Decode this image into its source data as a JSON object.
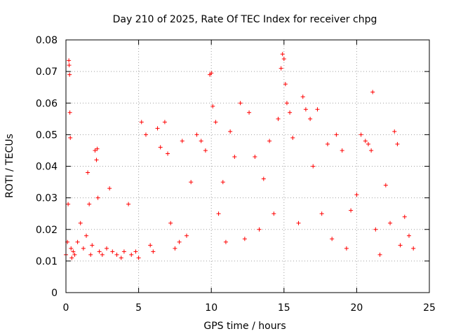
{
  "chart_data": {
    "type": "scatter",
    "title": "Day 210 of 2025, Rate Of TEC Index for receiver chpg",
    "xlabel": "GPS time / hours",
    "ylabel": "ROTI / TECUs",
    "xlim": [
      0,
      25
    ],
    "ylim": [
      0,
      0.08
    ],
    "x_ticks": [
      "0",
      "5",
      "10",
      "15",
      "20",
      "25"
    ],
    "x_tick_values": [
      0,
      5,
      10,
      15,
      20,
      25
    ],
    "y_ticks": [
      "0",
      "0.01",
      "0.02",
      "0.03",
      "0.04",
      "0.05",
      "0.06",
      "0.07",
      "0.08"
    ],
    "y_tick_values": [
      0,
      0.01,
      0.02,
      0.03,
      0.04,
      0.05,
      0.06,
      0.07,
      0.08
    ],
    "grid": true,
    "legend": "none",
    "marker": "+",
    "marker_color": "#ff0000",
    "series": [
      {
        "x": [
          0.0,
          0.1,
          0.15,
          0.2,
          0.22,
          0.25,
          0.27,
          0.3,
          0.35,
          0.4,
          0.5,
          0.6,
          0.8,
          1.0,
          1.2,
          1.4,
          1.5,
          1.6,
          1.7,
          1.8,
          2.0,
          2.1,
          2.15,
          2.2,
          2.3,
          2.5,
          2.8,
          3.0,
          3.2,
          3.5,
          3.8,
          4.0,
          4.3,
          4.5,
          4.8,
          5.0,
          5.2,
          5.5,
          5.8,
          6.0,
          6.3,
          6.5,
          6.8,
          7.0,
          7.2,
          7.5,
          7.8,
          8.0,
          8.3,
          8.6,
          9.0,
          9.3,
          9.6,
          9.9,
          10.0,
          10.1,
          10.3,
          10.5,
          10.8,
          11.0,
          11.3,
          11.6,
          12.0,
          12.3,
          12.6,
          13.0,
          13.3,
          13.6,
          14.0,
          14.3,
          14.6,
          14.8,
          14.9,
          15.0,
          15.1,
          15.2,
          15.4,
          15.6,
          16.0,
          16.3,
          16.5,
          16.8,
          17.0,
          17.3,
          17.6,
          18.0,
          18.3,
          18.6,
          19.0,
          19.3,
          19.6,
          20.0,
          20.3,
          20.6,
          20.8,
          21.0,
          21.1,
          21.3,
          21.6,
          22.0,
          22.3,
          22.6,
          22.8,
          23.0,
          23.3,
          23.6,
          23.9
        ],
        "y": [
          0.012,
          0.016,
          0.028,
          0.0735,
          0.072,
          0.069,
          0.057,
          0.049,
          0.014,
          0.011,
          0.013,
          0.012,
          0.016,
          0.022,
          0.014,
          0.018,
          0.038,
          0.028,
          0.012,
          0.015,
          0.045,
          0.042,
          0.0455,
          0.03,
          0.013,
          0.012,
          0.014,
          0.033,
          0.013,
          0.012,
          0.011,
          0.013,
          0.028,
          0.012,
          0.013,
          0.011,
          0.054,
          0.05,
          0.015,
          0.013,
          0.052,
          0.046,
          0.054,
          0.044,
          0.022,
          0.014,
          0.016,
          0.048,
          0.018,
          0.035,
          0.05,
          0.048,
          0.045,
          0.069,
          0.0695,
          0.059,
          0.054,
          0.025,
          0.035,
          0.016,
          0.051,
          0.043,
          0.06,
          0.017,
          0.057,
          0.043,
          0.02,
          0.036,
          0.048,
          0.025,
          0.055,
          0.071,
          0.0755,
          0.074,
          0.066,
          0.06,
          0.057,
          0.049,
          0.022,
          0.062,
          0.058,
          0.055,
          0.04,
          0.058,
          0.025,
          0.047,
          0.017,
          0.05,
          0.045,
          0.014,
          0.026,
          0.031,
          0.05,
          0.048,
          0.047,
          0.045,
          0.0635,
          0.02,
          0.012,
          0.034,
          0.022,
          0.051,
          0.047,
          0.015,
          0.024,
          0.018,
          0.014
        ]
      }
    ]
  }
}
